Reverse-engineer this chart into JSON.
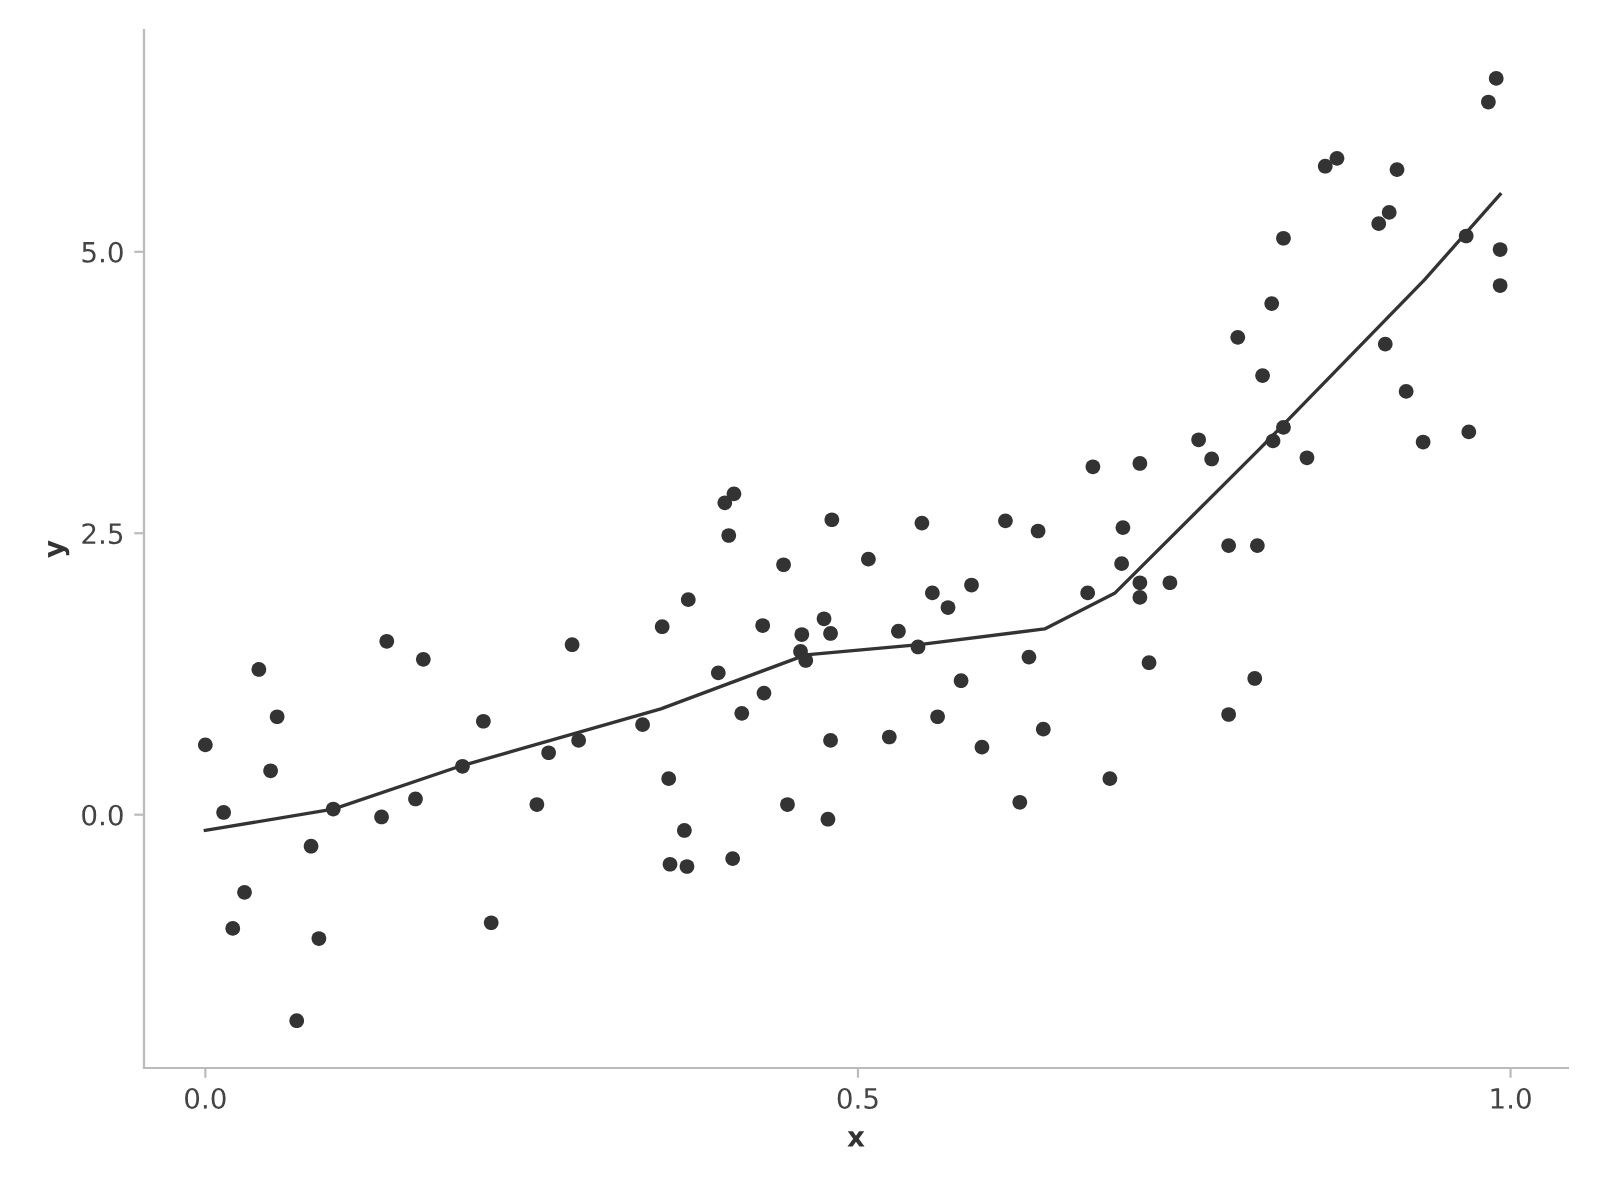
{
  "chart_data": {
    "type": "scatter",
    "xlabel": "x",
    "ylabel": "y",
    "xlim": [
      -0.047,
      1.044
    ],
    "ylim": [
      -2.25,
      6.97
    ],
    "xticks": [
      {
        "value": 0,
        "label": "0.0"
      },
      {
        "value": 0.5,
        "label": "0.5"
      },
      {
        "value": 1,
        "label": "1.0"
      }
    ],
    "yticks": [
      {
        "value": 0,
        "label": "0.0"
      },
      {
        "value": 2.5,
        "label": "2.5"
      },
      {
        "value": 5,
        "label": "5.0"
      }
    ],
    "grid": false,
    "legend": false,
    "series": [
      {
        "marker": "circle",
        "color": "#333333",
        "x": [
          0,
          0.014,
          0.03,
          0.021,
          0.041,
          0.05,
          0.055,
          0.07,
          0.081,
          0.087,
          0.098,
          0.135,
          0.139,
          0.161,
          0.167,
          0.197,
          0.213,
          0.219,
          0.254,
          0.263,
          0.281,
          0.286,
          0.335,
          0.35,
          0.355,
          0.356,
          0.367,
          0.369,
          0.37,
          0.393,
          0.398,
          0.401,
          0.405,
          0.404,
          0.411,
          0.427,
          0.428,
          0.443,
          0.446,
          0.456,
          0.457,
          0.46,
          0.474,
          0.479,
          0.479,
          0.477,
          0.48,
          0.508,
          0.524,
          0.531,
          0.546,
          0.549,
          0.557,
          0.561,
          0.569,
          0.579,
          0.587,
          0.595,
          0.613,
          0.624,
          0.631,
          0.638,
          0.642,
          0.676,
          0.68,
          0.693,
          0.702,
          0.703,
          0.716,
          0.716,
          0.716,
          0.723,
          0.739,
          0.761,
          0.771,
          0.784,
          0.784,
          0.791,
          0.804,
          0.806,
          0.81,
          0.817,
          0.818,
          0.826,
          0.826,
          0.844,
          0.858,
          0.867,
          0.899,
          0.907,
          0.904,
          0.913,
          0.92,
          0.933,
          0.966,
          0.968,
          0.983,
          0.989,
          0.992,
          0.992
        ],
        "values": [
          0.62,
          0.02,
          -0.69,
          -1.01,
          1.29,
          0.39,
          0.87,
          -1.83,
          -0.28,
          -1.1,
          0.05,
          -0.02,
          1.54,
          0.14,
          1.38,
          0.43,
          0.83,
          -0.96,
          0.09,
          0.55,
          1.51,
          0.66,
          0.8,
          1.67,
          0.32,
          -0.44,
          -0.14,
          -0.46,
          1.91,
          1.26,
          2.77,
          2.48,
          2.85,
          -0.39,
          0.9,
          1.68,
          1.08,
          2.22,
          0.09,
          1.45,
          1.6,
          1.37,
          1.74,
          1.61,
          0.66,
          -0.04,
          2.62,
          2.27,
          0.69,
          1.63,
          1.49,
          2.59,
          1.97,
          0.87,
          1.84,
          1.19,
          2.04,
          0.6,
          2.61,
          0.11,
          1.4,
          2.52,
          0.76,
          1.97,
          3.09,
          0.32,
          2.23,
          2.55,
          3.12,
          2.06,
          1.93,
          1.35,
          2.06,
          3.33,
          3.16,
          2.39,
          0.89,
          4.24,
          1.21,
          2.39,
          3.9,
          4.54,
          3.32,
          3.44,
          5.12,
          3.17,
          5.76,
          5.83,
          5.25,
          5.35,
          4.18,
          5.73,
          3.76,
          3.31,
          5.14,
          3.4,
          6.33,
          6.54,
          5.02,
          4.7
        ]
      },
      {
        "type": "line",
        "color": "#333333",
        "line_style": "solid",
        "x": [
          0,
          0.098,
          0.195,
          0.349,
          0.46,
          0.547,
          0.643,
          0.697,
          0.807,
          0.934,
          0.992
        ],
        "values": [
          -0.14,
          0.05,
          0.43,
          0.94,
          1.42,
          1.51,
          1.65,
          1.97,
          3.24,
          4.75,
          5.51
        ]
      }
    ]
  }
}
